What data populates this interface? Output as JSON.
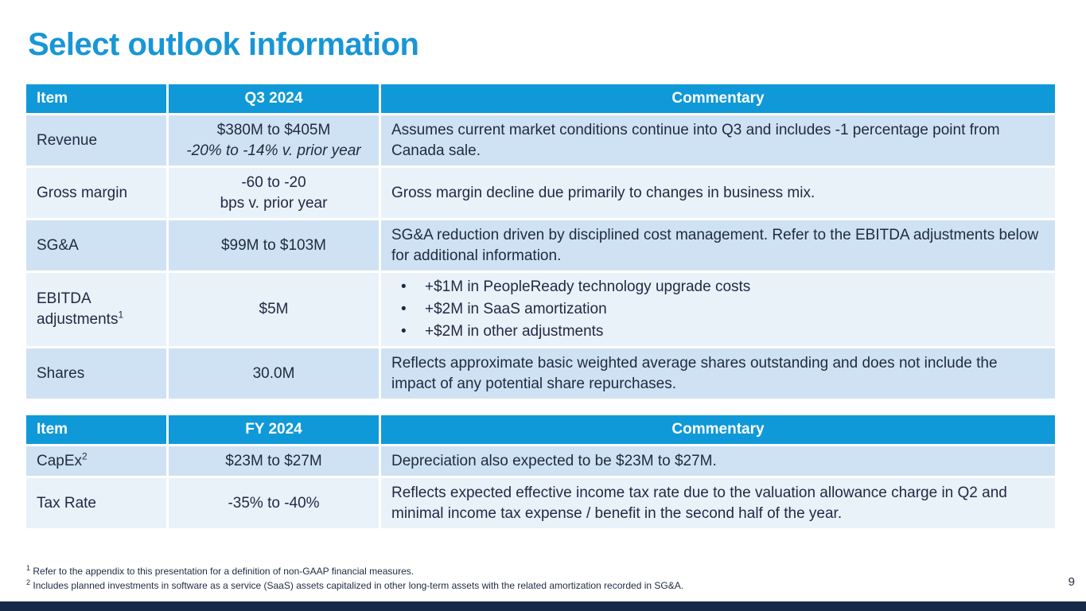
{
  "title": "Select outlook information",
  "table_q3": {
    "headers": [
      "Item",
      "Q3 2024",
      "Commentary"
    ],
    "rows": [
      {
        "item": "Revenue",
        "value_line1": "$380M to $405M",
        "value_line2": "-20% to -14% v. prior year",
        "commentary": "Assumes current market conditions continue into Q3 and includes -1 percentage point from Canada sale."
      },
      {
        "item": "Gross margin",
        "value_line1": "-60 to -20",
        "value_line2": "bps v. prior year",
        "commentary": "Gross margin decline due primarily to changes in business mix."
      },
      {
        "item": "SG&A",
        "value_line1": "$99M to $103M",
        "commentary": "SG&A reduction driven by disciplined cost management. Refer to the EBITDA adjustments below for additional information."
      },
      {
        "item": "EBITDA adjustments",
        "item_sup": "1",
        "value_line1": "$5M",
        "bullets": [
          "+$1M in PeopleReady technology upgrade costs",
          "+$2M in SaaS amortization",
          "+$2M in other adjustments"
        ]
      },
      {
        "item": "Shares",
        "value_line1": "30.0M",
        "commentary": "Reflects approximate basic weighted average shares outstanding and does not include the impact of any potential share repurchases."
      }
    ]
  },
  "table_fy": {
    "headers": [
      "Item",
      "FY 2024",
      "Commentary"
    ],
    "rows": [
      {
        "item": "CapEx",
        "item_sup": "2",
        "value_line1": "$23M to $27M",
        "commentary": "Depreciation also expected to be $23M to $27M."
      },
      {
        "item": "Tax Rate",
        "value_line1": "-35% to -40%",
        "commentary": "Reflects expected effective income tax rate due to the valuation allowance charge in Q2 and minimal income tax expense / benefit in the second half of the year."
      }
    ]
  },
  "footnotes": [
    {
      "num": "1",
      "text": "Refer to the appendix to this presentation for a definition of non-GAAP financial measures."
    },
    {
      "num": "2",
      "text": "Includes planned investments in software as a service (SaaS) assets capitalized in other long-term assets with the related amortization recorded in SG&A."
    }
  ],
  "page_number": "9",
  "colors": {
    "title": "#1896d6",
    "header_bg": "#0f99d8",
    "row_alt": "#cfe2f3",
    "row_plain": "#e9f1f9",
    "bottom_bar": "#172a47"
  }
}
